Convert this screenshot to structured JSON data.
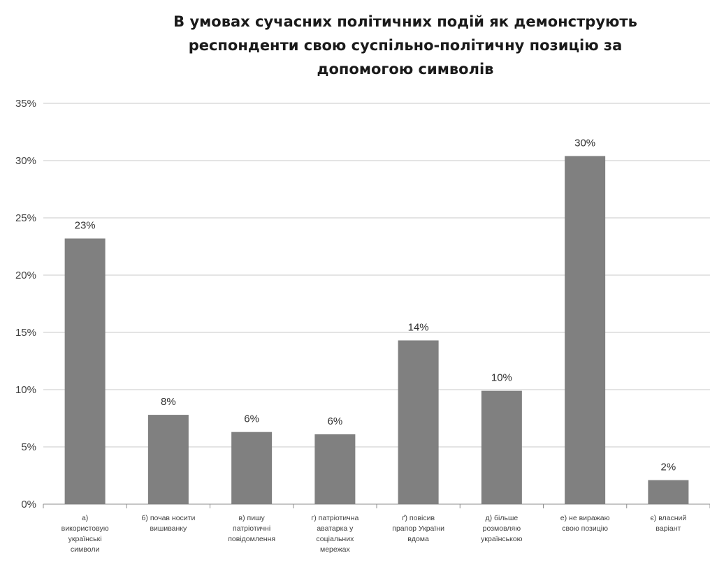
{
  "chart_data": {
    "type": "bar",
    "title": "В умовах сучасних політичних подій як демонструють\nреспонденти свою суспільно-політичну позицію за\nдопомогою символів",
    "categories": [
      "а)\nвикористовую\nукраїнські\nсимволи",
      "б) почав носити\nвишиванку",
      "в) пишу\nпатріотичні\nповідомлення",
      "г) патріотична\nаватарка у\nсоціальних\nмережах",
      "ґ) повісив\nпрапор України\nвдома",
      "д) більше\nрозмовляю\nукраїнською",
      "е) не виражаю\nсвою позицію",
      "є) власний\nваріант"
    ],
    "values": [
      23.2,
      7.8,
      6.3,
      6.1,
      14.3,
      9.9,
      30.4,
      2.1
    ],
    "data_labels": [
      "23%",
      "8%",
      "6%",
      "6%",
      "14%",
      "10%",
      "30%",
      "2%"
    ],
    "ylim": [
      0,
      35
    ],
    "yticks": [
      0,
      5,
      10,
      15,
      20,
      25,
      30,
      35
    ],
    "ytick_labels": [
      "0%",
      "5%",
      "10%",
      "15%",
      "20%",
      "25%",
      "30%",
      "35%"
    ],
    "xlabel": "",
    "ylabel": "",
    "grid": true,
    "legend": "none",
    "bar_color": "#808080",
    "grid_color": "#c8c8c8"
  }
}
